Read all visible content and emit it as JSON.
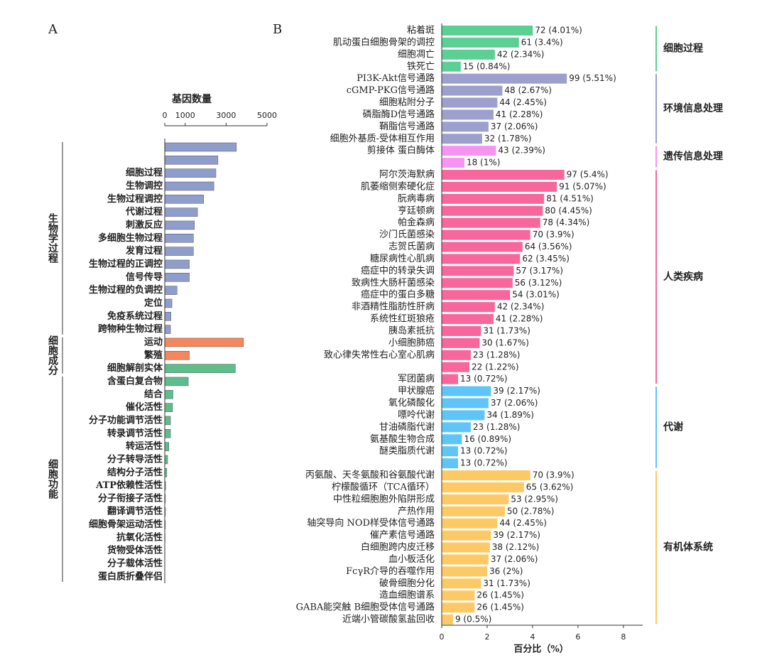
{
  "chart_data": [
    {
      "type": "bar",
      "panel": "A",
      "title": "基因数量",
      "xlim": [
        0,
        5000
      ],
      "xticks": [
        0,
        1000,
        3000,
        5000
      ],
      "groups": [
        {
          "label": "生物学过程",
          "color": "#8e9dcb",
          "categories": [
            null,
            null,
            "细胞过程",
            "生物调控",
            "生物过程调控",
            "代谢过程",
            "刺激反应",
            "多细胞生物过程",
            "发育过程",
            "生物过程的正调控",
            "信号传导",
            "生物过程的负调控",
            "定位",
            "免疫系统过程",
            "跨物种生物过程"
          ],
          "values": [
            3500,
            2600,
            2500,
            2400,
            1900,
            1600,
            1450,
            1400,
            1400,
            1200,
            1200,
            600,
            350,
            300,
            280
          ]
        },
        {
          "label": "细胞成分",
          "colors": [
            "#f4875e",
            "#f4875e",
            "#5dbe8c"
          ],
          "categories": [
            "运动",
            "繁殖",
            "细胞解剖实体"
          ],
          "values": [
            3850,
            1200,
            3450
          ]
        },
        {
          "label": "细胞功能",
          "color": "#5dbe8c",
          "categories": [
            "含蛋白复合物",
            "结合",
            "催化活性",
            "分子功能调节活性",
            "转录调节活性",
            "转运活性",
            "分子转导活性",
            "结构分子活性",
            "ATP依赖性活性",
            "分子衔接子活性",
            "翻译调节活性",
            "细胞骨架运动活性",
            "抗氧化活性",
            "货物受体活性",
            "分子载体活性",
            "蛋白质折叠伴侣"
          ],
          "values": [
            1150,
            400,
            380,
            280,
            280,
            200,
            140,
            100,
            40,
            30,
            30,
            25,
            15,
            10,
            5,
            3
          ]
        }
      ]
    },
    {
      "type": "bar",
      "panel": "B",
      "xlabel": "百分比（%）",
      "xlim": [
        0,
        8.85
      ],
      "xticks": [
        0,
        2,
        4,
        6,
        8
      ],
      "groups": [
        {
          "label": "细胞过程",
          "color": "#5ccf93",
          "categories": [
            "粘着斑",
            "肌动蛋白细胞骨架的调控",
            "细胞凋亡",
            "铁死亡"
          ],
          "values": [
            4.01,
            3.4,
            2.34,
            0.84
          ],
          "value_labels": [
            "72 (4.01%)",
            "61 (3.4%)",
            "42 (2.34%)",
            "15 (0.84%)"
          ]
        },
        {
          "label": "环境信息处理",
          "color": "#9d9fcd",
          "categories": [
            "PI3K-Akt信号通路",
            "cGMP-PKG信号通路",
            "细胞粘附分子",
            "磷脂酶D信号通路",
            "鞘脂信号通路",
            "细胞外基质-受体相互作用"
          ],
          "values": [
            5.51,
            2.67,
            2.45,
            2.28,
            2.06,
            1.78
          ],
          "value_labels": [
            "99 (5.51%)",
            "48 (2.67%)",
            "44 (2.45%)",
            "41 (2.28%)",
            "37 (2.06%)",
            "32 (1.78%)"
          ]
        },
        {
          "label": "遗传信息处理",
          "color": "#f794f2",
          "categories": [
            "剪接体 蛋白酶体",
            null
          ],
          "values": [
            2.39,
            1
          ],
          "value_labels": [
            "43 (2.39%)",
            "18 (1%)"
          ]
        },
        {
          "label": "人类疾病",
          "color": "#f7679b",
          "categories": [
            "阿尔茨海默病",
            "肌萎缩侧索硬化症",
            "朊病毒病",
            "亨廷顿病",
            "帕金森病",
            "沙门氏菌感染",
            "志贺氏菌病",
            "糖尿病性心肌病",
            "癌症中的转录失调",
            "致病性大肠杆菌感染",
            "癌症中的蛋白多糖",
            "非酒精性脂肪性肝病",
            "系统性红斑狼疮",
            "胰岛素抵抗",
            "小细胞肺癌",
            "致心律失常性右心室心肌病",
            null,
            "军团菌病"
          ],
          "values": [
            5.4,
            5.07,
            4.51,
            4.45,
            4.34,
            3.9,
            3.56,
            3.45,
            3.17,
            3.12,
            3.01,
            2.34,
            2.28,
            1.73,
            1.67,
            1.28,
            1.22,
            0.72
          ],
          "value_labels": [
            "97 (5.4%)",
            "91 (5.07%)",
            "81 (4.51%)",
            "80 (4.45%)",
            "78 (4.34%)",
            "70 (3.9%)",
            "64 (3.56%)",
            "62 (3.45%)",
            "57 (3.17%)",
            "56 (3.12%)",
            "54 (3.01%)",
            "42 (2.34%)",
            "41 (2.28%)",
            "31 (1.73%)",
            "30 (1.67%)",
            "23 (1.28%)",
            "22 (1.22%)",
            "13 (0.72%)"
          ]
        },
        {
          "label": "代谢",
          "color": "#5fc5f7",
          "categories": [
            "甲状腺癌",
            "氧化磷酸化",
            "嘌呤代谢",
            "甘油磷脂代谢",
            "氨基酸生物合成",
            "醚类脂质代谢",
            null
          ],
          "values": [
            2.17,
            2.06,
            1.89,
            1.28,
            0.89,
            0.72,
            0.72
          ],
          "value_labels": [
            "39 (2.17%)",
            "37 (2.06%)",
            "34 (1.89%)",
            "23 (1.28%)",
            "16 (0.89%)",
            "13 (0.72%)",
            "13 (0.72%)"
          ]
        },
        {
          "label": "有机体系统",
          "color": "#fcc964",
          "categories": [
            "丙氨酸、天冬氨酸和谷氨酸代谢",
            "柠檬酸循环（TCA循环）",
            "中性粒细胞胞外陷阱形成",
            "产热作用",
            "轴突导向 NOD样受体信号通路",
            "催产素信号通路",
            "白细胞跨内皮迁移",
            "血小板活化",
            "FcγR介导的吞噬作用",
            "破骨细胞分化",
            "造血细胞谱系",
            "GABA能突触 B细胞受体信号通路",
            "近端小管碳酸氢盐回收"
          ],
          "values": [
            3.9,
            3.62,
            2.95,
            2.78,
            2.45,
            2.17,
            2.12,
            2.06,
            2,
            1.73,
            1.45,
            1.45,
            0.5
          ],
          "value_labels": [
            "70 (3.9%)",
            "65 (3.62%)",
            "53 (2.95%)",
            "50 (2.78%)",
            "44 (2.45%)",
            "39 (2.17%)",
            "38 (2.12%)",
            "37 (2.06%)",
            "36 (2%)",
            "31 (1.73%)",
            "26 (1.45%)",
            "26 (1.45%)",
            "9 (0.5%)"
          ]
        }
      ]
    }
  ]
}
